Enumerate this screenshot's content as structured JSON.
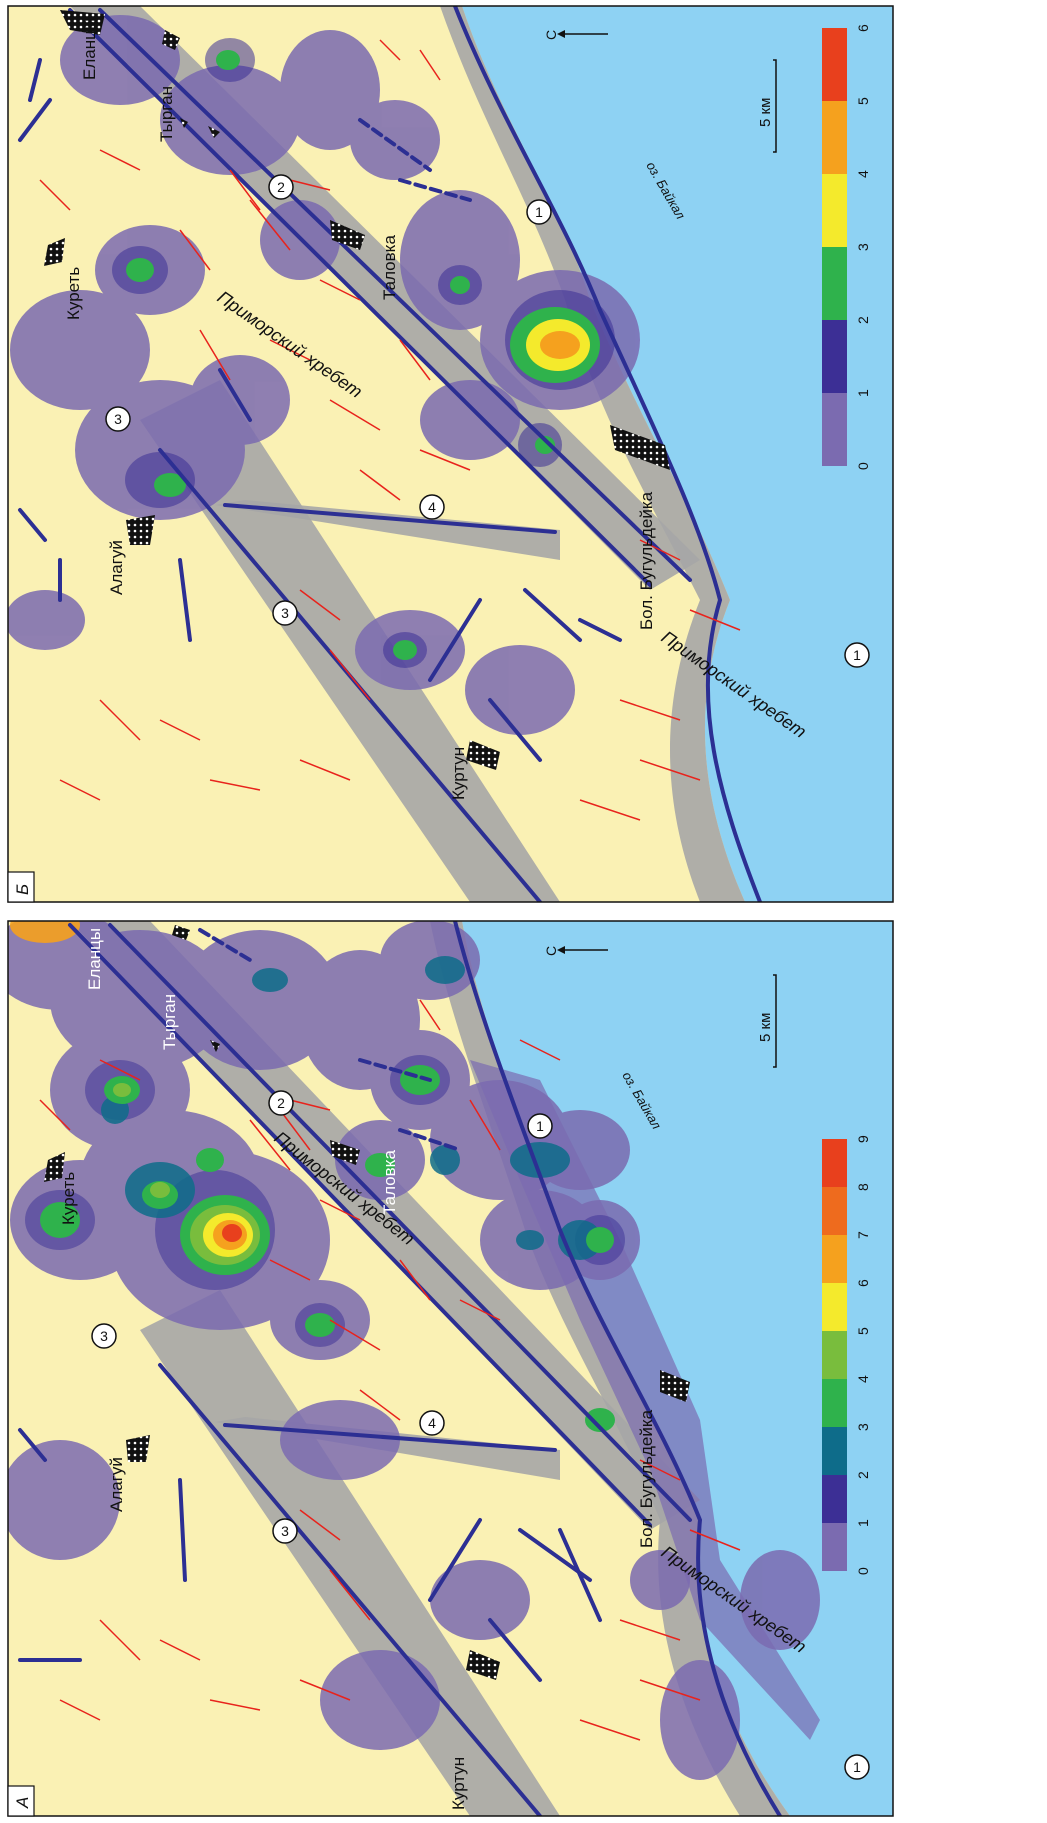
{
  "panels": {
    "a": {
      "letter": "А",
      "legend": {
        "ticks": [
          "0",
          "1",
          "2",
          "3",
          "4",
          "5",
          "6",
          "7",
          "8",
          "9"
        ],
        "colors": [
          "#7b6bb0",
          "#3c2f95",
          "#0e6c8a",
          "#2fb24c",
          "#79bd3d",
          "#f4ea2c",
          "#f5a11e",
          "#ee6b1e",
          "#e8401d"
        ]
      }
    },
    "b": {
      "letter": "Б",
      "legend": {
        "ticks": [
          "0",
          "1",
          "2",
          "3",
          "4",
          "5",
          "6"
        ],
        "colors": [
          "#7b6bb0",
          "#3c2f95",
          "#2fb24c",
          "#f4ea2c",
          "#f5a11e",
          "#e8401d"
        ]
      }
    }
  },
  "scale_label": "5 км",
  "north_label": "С",
  "lake_label": "оз. Байкал",
  "ridge_label": "Приморский хребет",
  "places": {
    "elantsy": "Еланцы",
    "tyrgan": "Тырган",
    "kuret": "Куреть",
    "talovka": "Таловка",
    "alaguy": "Алагуй",
    "bol_buguldeyka": "Бол. Бугульдейка",
    "kurtun": "Куртун"
  },
  "faults": {
    "f1": "1",
    "f2": "2",
    "f3": "3",
    "f4": "4"
  },
  "colors": {
    "land": "#faf1b4",
    "lake": "#8ed2f3",
    "fault_zone": "#a6a6a6",
    "fault_line": "#2c2f93",
    "minor_fault": "#e8231c",
    "density_low": "#7b6bb0"
  }
}
